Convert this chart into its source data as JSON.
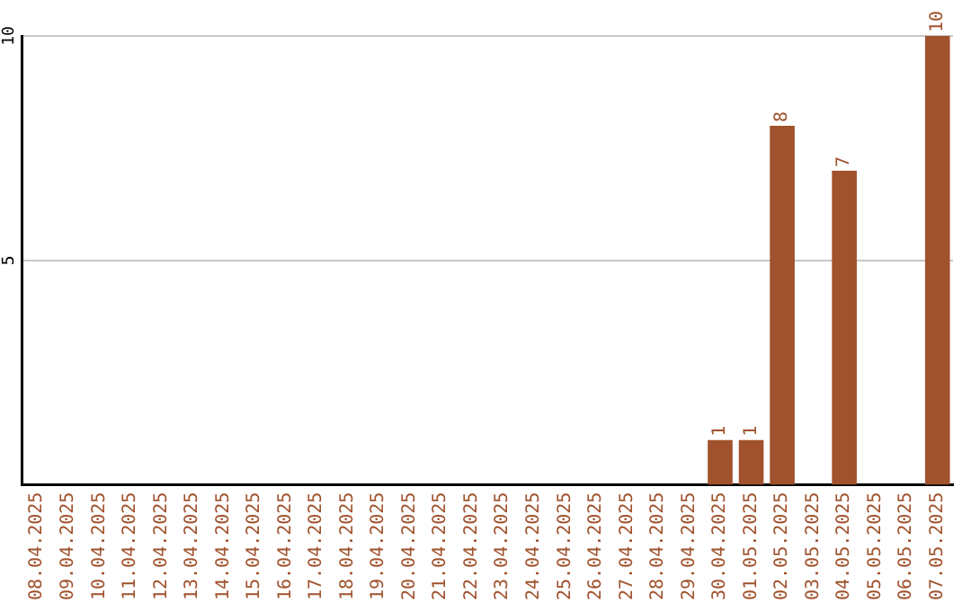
{
  "chart_data": {
    "type": "bar",
    "categories": [
      "08.04.2025",
      "09.04.2025",
      "10.04.2025",
      "11.04.2025",
      "12.04.2025",
      "13.04.2025",
      "14.04.2025",
      "15.04.2025",
      "16.04.2025",
      "17.04.2025",
      "18.04.2025",
      "19.04.2025",
      "20.04.2025",
      "21.04.2025",
      "22.04.2025",
      "23.04.2025",
      "24.04.2025",
      "25.04.2025",
      "26.04.2025",
      "27.04.2025",
      "28.04.2025",
      "29.04.2025",
      "30.04.2025",
      "01.05.2025",
      "02.05.2025",
      "03.05.2025",
      "04.05.2025",
      "05.05.2025",
      "06.05.2025",
      "07.05.2025"
    ],
    "values": [
      0,
      0,
      0,
      0,
      0,
      0,
      0,
      0,
      0,
      0,
      0,
      0,
      0,
      0,
      0,
      0,
      0,
      0,
      0,
      0,
      0,
      0,
      1,
      1,
      8,
      0,
      7,
      0,
      0,
      10
    ],
    "value_labels": [
      null,
      null,
      null,
      null,
      null,
      null,
      null,
      null,
      null,
      null,
      null,
      null,
      null,
      null,
      null,
      null,
      null,
      null,
      null,
      null,
      null,
      null,
      "1",
      "1",
      "8",
      null,
      "7",
      null,
      null,
      "10"
    ],
    "color": "#a0522d",
    "ylim": [
      0,
      10
    ],
    "yticks": [
      5,
      10
    ],
    "grid": "y",
    "legend": false
  }
}
